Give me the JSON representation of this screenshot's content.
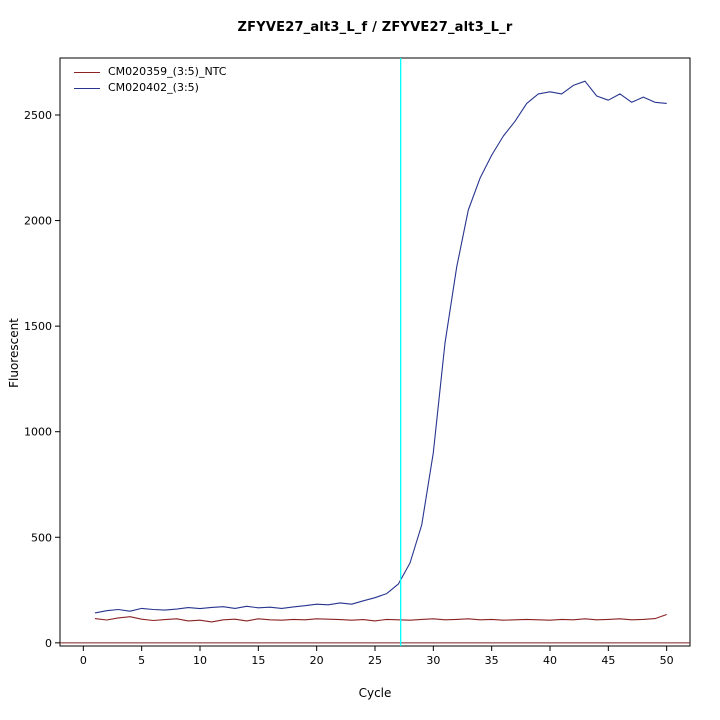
{
  "chart_data": {
    "type": "line",
    "title": "ZFYVE27_alt3_L_f / ZFYVE27_alt3_L_r",
    "xlabel": "Cycle",
    "ylabel": "Fluorescent",
    "xlim": [
      -2,
      52
    ],
    "ylim": [
      -15,
      2770
    ],
    "x_ticks": [
      0,
      5,
      10,
      15,
      20,
      25,
      30,
      35,
      40,
      45,
      50
    ],
    "y_ticks": [
      0,
      500,
      1000,
      1500,
      2000,
      2500
    ],
    "grid": false,
    "legend_position": "top-left",
    "x": [
      1,
      2,
      3,
      4,
      5,
      6,
      7,
      8,
      9,
      10,
      11,
      12,
      13,
      14,
      15,
      16,
      17,
      18,
      19,
      20,
      21,
      22,
      23,
      24,
      25,
      26,
      27,
      28,
      29,
      30,
      31,
      32,
      33,
      34,
      35,
      36,
      37,
      38,
      39,
      40,
      41,
      42,
      43,
      44,
      45,
      46,
      47,
      48,
      49,
      50
    ],
    "series": [
      {
        "name": "CM020359_(3:5)_NTC",
        "color": "#8B2323",
        "values": [
          115,
          108,
          118,
          124,
          112,
          106,
          110,
          114,
          104,
          107,
          99,
          109,
          112,
          104,
          114,
          109,
          107,
          111,
          109,
          114,
          112,
          110,
          107,
          110,
          104,
          111,
          109,
          107,
          111,
          114,
          109,
          111,
          114,
          109,
          111,
          107,
          109,
          111,
          109,
          107,
          111,
          109,
          114,
          109,
          111,
          114,
          109,
          111,
          115,
          134
        ]
      },
      {
        "name": "CM020402_(3:5)",
        "color": "#27358F",
        "values": [
          142,
          152,
          158,
          150,
          163,
          158,
          155,
          160,
          167,
          162,
          168,
          171,
          163,
          173,
          166,
          169,
          163,
          170,
          176,
          183,
          180,
          189,
          183,
          199,
          214,
          233,
          278,
          378,
          558,
          900,
          1420,
          1780,
          2050,
          2200,
          2310,
          2400,
          2470,
          2555,
          2600,
          2610,
          2600,
          2640,
          2660,
          2590,
          2570,
          2600,
          2560,
          2585,
          2560,
          2555
        ]
      }
    ],
    "threshold_line": {
      "x": 27.2,
      "color": "#00FFFF"
    },
    "zero_line": {
      "y": 0,
      "color": "#7B2020"
    }
  }
}
